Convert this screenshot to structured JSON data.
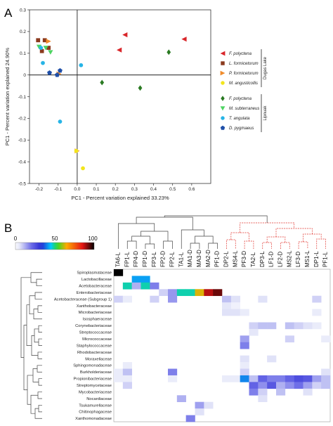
{
  "figure": {
    "panel_a_label": "A",
    "panel_b_label": "B"
  },
  "chart_data": [
    {
      "type": "scatter",
      "panel": "A",
      "xlabel": "PC1 - Percent variation explained 33.23%",
      "ylabel": "PC1 - Percent variation explained 24.90%",
      "xlim": [
        -0.25,
        0.7
      ],
      "ylim": [
        -0.5,
        0.3
      ],
      "xticks": [
        "-0.2",
        "-0.1",
        "0.0",
        "0.1",
        "0.2",
        "0.3",
        "0.4",
        "0.5",
        "0.6"
      ],
      "yticks": [
        "0.3",
        "0.2",
        "0.1",
        "0",
        "-0.1",
        "-0.2",
        "-0.3",
        "-0.4",
        "-0.5"
      ],
      "xtick_values": [
        -0.2,
        -0.1,
        0.0,
        0.1,
        0.2,
        0.3,
        0.4,
        0.5,
        0.6
      ],
      "ytick_values": [
        0.3,
        0.2,
        0.1,
        0,
        -0.1,
        -0.2,
        -0.3,
        -0.4,
        -0.5
      ],
      "groups": [
        {
          "name": "Dugas Lake",
          "series": [
            {
              "name": "F. polyctena",
              "marker": "tri-left",
              "color": "#d9262a",
              "x": [
                0.25,
                0.56,
                0.22
              ],
              "y": [
                0.185,
                0.165,
                0.115
              ]
            },
            {
              "name": "L. formicetorum",
              "marker": "square",
              "color": "#8b3a1e",
              "x": [
                -0.205,
                -0.17,
                -0.185,
                -0.15
              ],
              "y": [
                0.16,
                0.16,
                0.11,
                0.125
              ]
            },
            {
              "name": "P. formicetorum",
              "marker": "tri-right",
              "color": "#f08b2a",
              "x": [
                -0.15,
                -0.095,
                0.0
              ],
              "y": [
                0.155,
                0.005,
                -0.35
              ]
            },
            {
              "name": "M. angusticollis",
              "marker": "circle",
              "color": "#f2e51c",
              "x": [
                0.03,
                -0.005
              ],
              "y": [
                -0.43,
                -0.35
              ]
            }
          ]
        },
        {
          "name": "Lipnuak",
          "series": [
            {
              "name": "F. polyctena",
              "marker": "diamond",
              "color": "#2a7a22",
              "x": [
                0.48,
                0.13,
                0.33
              ],
              "y": [
                0.105,
                -0.035,
                -0.06
              ]
            },
            {
              "name": "M. subterraneus",
              "marker": "tri-down",
              "color": "#4ed462",
              "x": [
                -0.14,
                -0.2,
                -0.165
              ],
              "y": [
                0.105,
                0.13,
                0.125
              ]
            },
            {
              "name": "T. angulata",
              "marker": "circle",
              "color": "#27b4e6",
              "x": [
                -0.19,
                -0.18,
                0.02,
                -0.09
              ],
              "y": [
                0.125,
                0.055,
                0.045,
                -0.215
              ]
            },
            {
              "name": "D. pygmaeus",
              "marker": "pentagon",
              "color": "#1f4fa8",
              "x": [
                -0.145,
                -0.09,
                -0.105
              ],
              "y": [
                0.01,
                0.02,
                0.0
              ]
            }
          ]
        }
      ]
    },
    {
      "type": "heatmap",
      "panel": "B",
      "scale_min": "0",
      "scale_mid": "50",
      "scale_max": "100",
      "columns": [
        "TA6-L",
        "FP1-L",
        "FP4-D",
        "FP1-D",
        "FP3-L",
        "FP2-D",
        "FP2-L",
        "TA1-L",
        "MA1-D",
        "MA3-D",
        "MA2-D",
        "PF1-D",
        "DP2-L",
        "MS4-L",
        "PF3-D",
        "TA2-L",
        "DP3-L",
        "LF1-D",
        "LF2-D",
        "MS2-L",
        "LF3-D",
        "MS1-L",
        "DP1-L",
        "PF1-L"
      ],
      "rows": [
        "Spiroplasmataceae",
        "Lactobacillaceae",
        "Acetobacteraceae",
        "Enterobacteriaceae",
        "Acetobacteraceae (Subgroup 1)",
        "Xanthobacteraceae",
        "Microbacteriaceae",
        "Isosphaeraceae",
        "Corynebacteriaceae",
        "Streptococcaceae",
        "Micrococcaceae",
        "Staphylococcaceae",
        "Rhodobacteraceae",
        "Moraxellaceae",
        "Sphingomonadaceae",
        "Burkholderiaceae",
        "Propionibacteriaceae",
        "Streptomycetaceae",
        "Mycobacteriaceae",
        "Nocardiaceae",
        "Tsukamurellaceae",
        "Chitinophagaceae",
        "Xanthomonadaceae"
      ],
      "values": [
        [
          100,
          0,
          0,
          0,
          0,
          0,
          0,
          0,
          0,
          0,
          0,
          0,
          0,
          0,
          0,
          0,
          0,
          0,
          0,
          0,
          0,
          0,
          0,
          0
        ],
        [
          0,
          0,
          42,
          42,
          0,
          0,
          0,
          0,
          0,
          0,
          0,
          0,
          0,
          0,
          0,
          0,
          0,
          0,
          0,
          0,
          0,
          0,
          0,
          0
        ],
        [
          0,
          48,
          12,
          48,
          18,
          0,
          0,
          0,
          0,
          0,
          0,
          0,
          0,
          0,
          0,
          0,
          0,
          0,
          0,
          0,
          0,
          0,
          0,
          0
        ],
        [
          0,
          0,
          0,
          0,
          0,
          8,
          15,
          48,
          48,
          63,
          88,
          93,
          0,
          0,
          0,
          0,
          0,
          0,
          0,
          0,
          0,
          0,
          0,
          0
        ],
        [
          8,
          4,
          0,
          0,
          8,
          0,
          15,
          0,
          0,
          0,
          0,
          0,
          10,
          6,
          0,
          0,
          6,
          0,
          0,
          0,
          0,
          0,
          8,
          0
        ],
        [
          0,
          0,
          0,
          0,
          0,
          0,
          0,
          0,
          0,
          0,
          0,
          0,
          5,
          3,
          0,
          0,
          0,
          0,
          0,
          0,
          0,
          0,
          0,
          0
        ],
        [
          0,
          0,
          0,
          0,
          0,
          0,
          0,
          0,
          0,
          0,
          0,
          0,
          6,
          6,
          4,
          0,
          0,
          0,
          0,
          0,
          0,
          0,
          4,
          0
        ],
        [
          0,
          0,
          0,
          0,
          0,
          0,
          0,
          0,
          0,
          0,
          0,
          0,
          0,
          0,
          0,
          0,
          0,
          0,
          0,
          0,
          0,
          0,
          0,
          0
        ],
        [
          0,
          0,
          0,
          0,
          0,
          0,
          0,
          0,
          0,
          0,
          0,
          0,
          0,
          0,
          0,
          8,
          10,
          10,
          0,
          10,
          8,
          6,
          4,
          0
        ],
        [
          0,
          0,
          0,
          0,
          0,
          0,
          0,
          0,
          0,
          0,
          0,
          0,
          0,
          0,
          0,
          5,
          0,
          0,
          0,
          0,
          0,
          0,
          0,
          0
        ],
        [
          0,
          0,
          0,
          0,
          0,
          0,
          0,
          0,
          0,
          0,
          0,
          0,
          0,
          0,
          14,
          0,
          0,
          0,
          0,
          8,
          0,
          0,
          0,
          4
        ],
        [
          0,
          0,
          0,
          0,
          0,
          0,
          0,
          0,
          0,
          0,
          0,
          0,
          0,
          0,
          18,
          0,
          0,
          0,
          0,
          0,
          0,
          0,
          0,
          0
        ],
        [
          0,
          0,
          0,
          0,
          0,
          0,
          0,
          0,
          0,
          0,
          0,
          0,
          0,
          0,
          0,
          0,
          0,
          0,
          0,
          0,
          0,
          0,
          0,
          0
        ],
        [
          0,
          0,
          0,
          0,
          0,
          0,
          0,
          0,
          0,
          0,
          0,
          0,
          0,
          0,
          6,
          0,
          0,
          6,
          0,
          0,
          0,
          0,
          0,
          0
        ],
        [
          0,
          4,
          0,
          0,
          0,
          0,
          0,
          0,
          0,
          0,
          0,
          0,
          0,
          0,
          4,
          0,
          0,
          0,
          0,
          0,
          0,
          0,
          0,
          0
        ],
        [
          4,
          10,
          0,
          0,
          0,
          0,
          18,
          0,
          0,
          0,
          0,
          0,
          0,
          0,
          8,
          0,
          0,
          0,
          0,
          0,
          0,
          0,
          0,
          6
        ],
        [
          4,
          4,
          0,
          0,
          0,
          0,
          4,
          0,
          0,
          0,
          0,
          0,
          4,
          4,
          40,
          10,
          22,
          18,
          18,
          22,
          26,
          24,
          14,
          10
        ],
        [
          0,
          8,
          0,
          0,
          0,
          0,
          0,
          0,
          0,
          0,
          0,
          0,
          0,
          0,
          0,
          22,
          16,
          24,
          12,
          16,
          20,
          14,
          8,
          10
        ],
        [
          0,
          0,
          0,
          0,
          0,
          0,
          0,
          0,
          0,
          0,
          0,
          0,
          0,
          0,
          0,
          18,
          8,
          0,
          10,
          0,
          0,
          6,
          0,
          0
        ],
        [
          0,
          0,
          0,
          0,
          0,
          0,
          0,
          12,
          0,
          0,
          0,
          0,
          0,
          0,
          0,
          0,
          6,
          0,
          0,
          0,
          0,
          0,
          0,
          0
        ],
        [
          0,
          0,
          0,
          0,
          0,
          0,
          0,
          0,
          0,
          14,
          6,
          0,
          0,
          0,
          0,
          0,
          0,
          0,
          0,
          0,
          0,
          0,
          0,
          0
        ],
        [
          0,
          0,
          0,
          0,
          0,
          0,
          0,
          0,
          0,
          6,
          0,
          0,
          0,
          0,
          0,
          0,
          0,
          0,
          0,
          0,
          0,
          0,
          0,
          0
        ],
        [
          0,
          0,
          0,
          0,
          0,
          0,
          0,
          0,
          18,
          0,
          0,
          0,
          0,
          0,
          0,
          0,
          0,
          0,
          0,
          0,
          0,
          0,
          0,
          0
        ]
      ]
    }
  ]
}
